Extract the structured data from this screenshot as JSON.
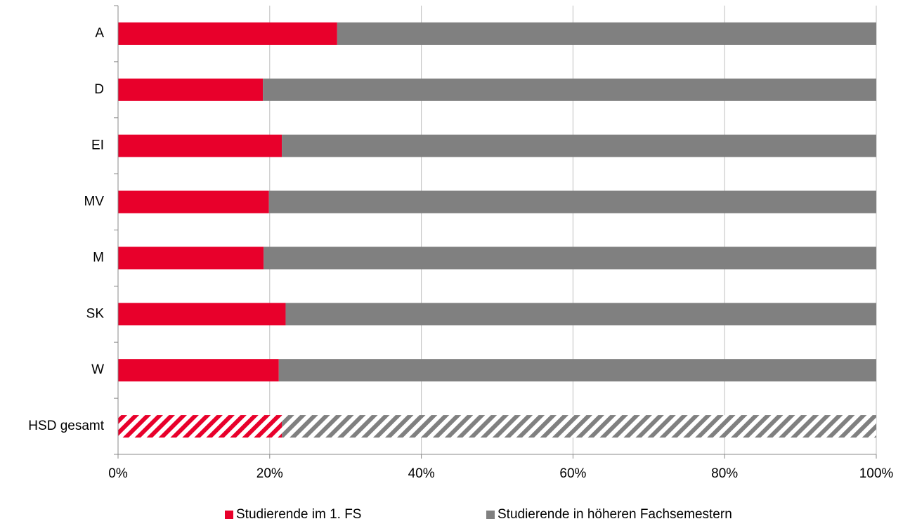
{
  "chart_data": {
    "type": "stacked_bar_horizontal",
    "categories": [
      "A",
      "D",
      "EI",
      "MV",
      "M",
      "SK",
      "W",
      "HSD gesamt"
    ],
    "series": [
      {
        "name": "Studierende im 1. FS",
        "color": "#e8002b",
        "values": [
          28.9,
          19.1,
          21.6,
          19.9,
          19.2,
          22.1,
          21.2,
          21.6
        ]
      },
      {
        "name": "Studierende in höheren Fachsemestern",
        "color": "#808080",
        "values": [
          71.1,
          80.9,
          78.4,
          80.1,
          80.8,
          77.9,
          78.8,
          78.4
        ]
      }
    ],
    "xlim": [
      0,
      100
    ],
    "xticks": [
      {
        "value": 0,
        "label": "0%"
      },
      {
        "value": 20,
        "label": "20%"
      },
      {
        "value": 40,
        "label": "40%"
      },
      {
        "value": 60,
        "label": "60%"
      },
      {
        "value": 80,
        "label": "80%"
      },
      {
        "value": 100,
        "label": "100%"
      }
    ],
    "grid": true,
    "hatch_last": true,
    "legend": "bottom"
  }
}
